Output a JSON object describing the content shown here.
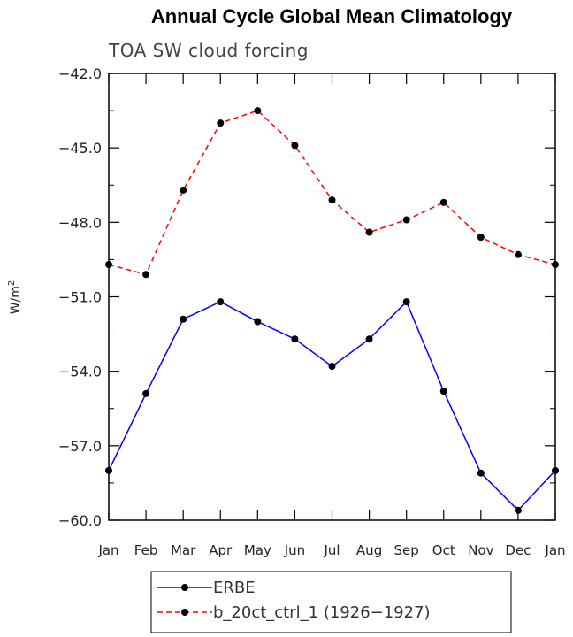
{
  "chart_data": {
    "type": "line",
    "title": "Annual Cycle Global Mean Climatology",
    "subtitle": "TOA SW cloud forcing",
    "ylabel": "W/m",
    "ylabel_sup": "2",
    "categories": [
      "Jan",
      "Feb",
      "Mar",
      "Apr",
      "May",
      "Jun",
      "Jul",
      "Aug",
      "Sep",
      "Oct",
      "Nov",
      "Dec",
      "Jan"
    ],
    "ylim": [
      -60.0,
      -42.0
    ],
    "yticks": [
      -42.0,
      -45.0,
      -48.0,
      -51.0,
      -54.0,
      -57.0,
      -60.0
    ],
    "ytick_labels": [
      "−42.0",
      "−45.0",
      "−48.0",
      "−51.0",
      "−54.0",
      "−57.0",
      "−60.0"
    ],
    "grid": false,
    "legend_position": "bottom",
    "series": [
      {
        "name": "ERBE",
        "color": "#0000ff",
        "line_style": "solid",
        "values": [
          -58.0,
          -54.9,
          -51.9,
          -51.2,
          -52.0,
          -52.7,
          -53.8,
          -52.7,
          -51.2,
          -54.8,
          -58.1,
          -59.6,
          -58.0
        ]
      },
      {
        "name": "b_20ct_ctrl_1 (1926−1927)",
        "color": "#ff0000",
        "line_style": "dashed",
        "values": [
          -49.7,
          -50.1,
          -46.7,
          -44.0,
          -43.5,
          -44.9,
          -47.1,
          -48.4,
          -47.9,
          -47.2,
          -48.6,
          -49.3,
          -49.7
        ]
      }
    ]
  }
}
